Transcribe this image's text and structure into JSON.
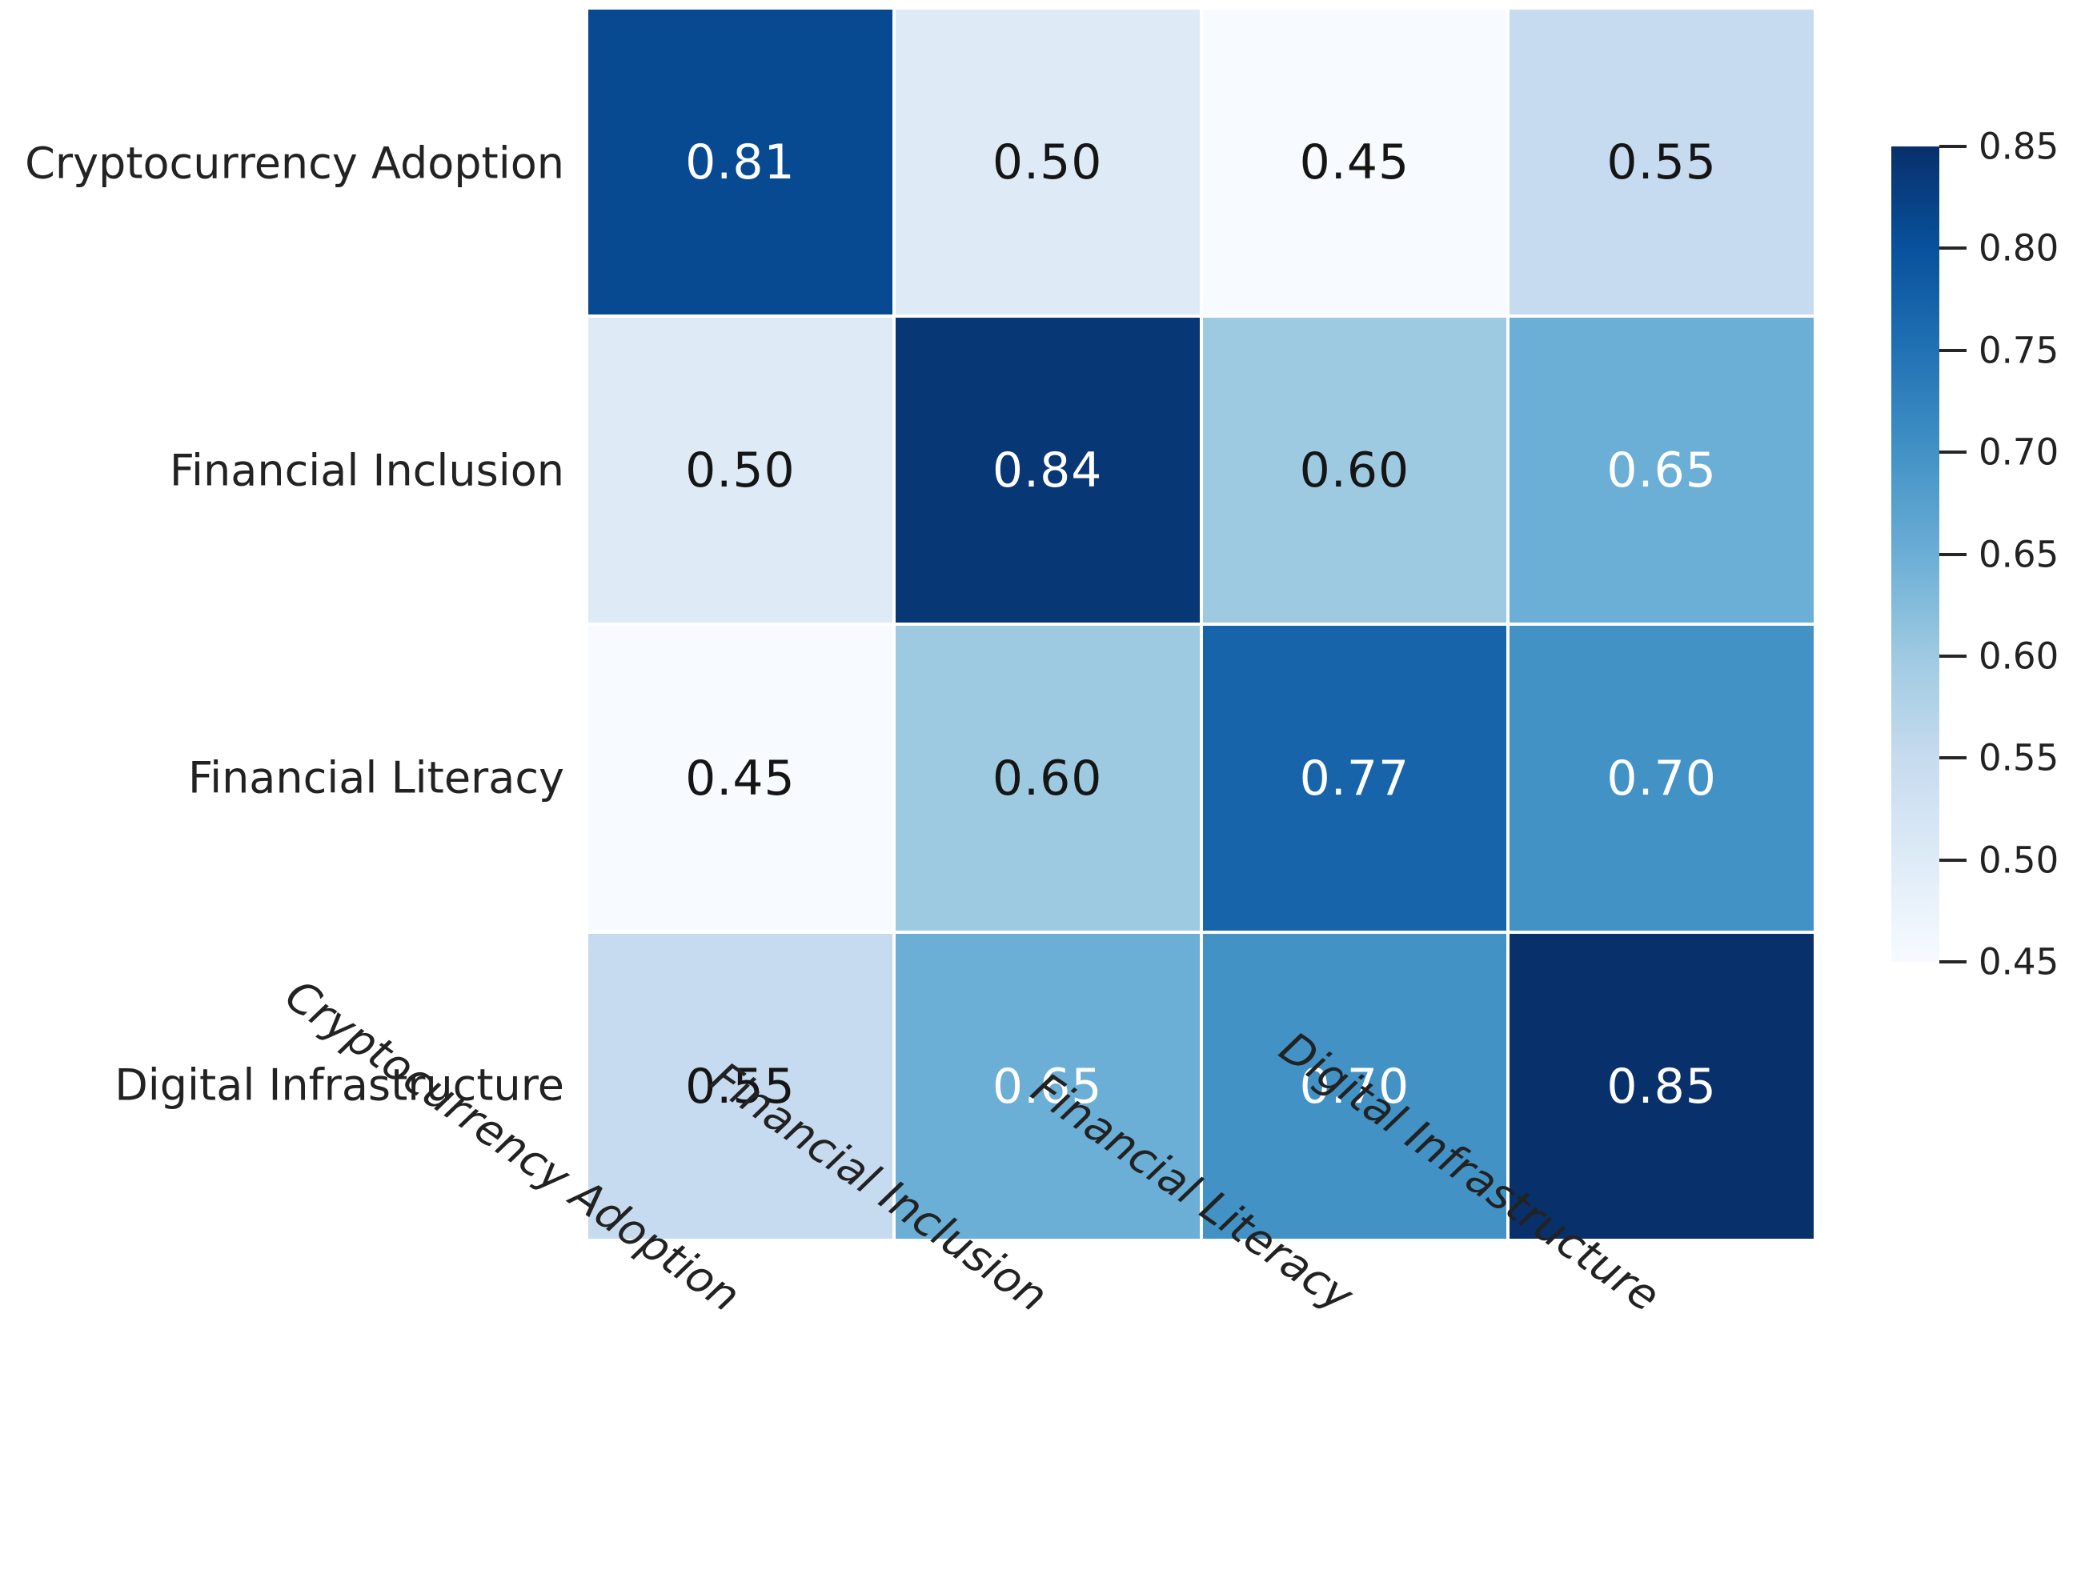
{
  "chart_data": {
    "type": "heatmap",
    "title": "",
    "categories": [
      "Cryptocurrency Adoption",
      "Financial Inclusion",
      "Financial Literacy",
      "Digital Infrastructure"
    ],
    "x_categories": [
      "Cryptocurrency Adoption",
      "Financial Inclusion",
      "Financial Literacy",
      "Digital Infrastructure"
    ],
    "matrix": [
      [
        0.81,
        0.5,
        0.45,
        0.55
      ],
      [
        0.5,
        0.84,
        0.6,
        0.65
      ],
      [
        0.45,
        0.6,
        0.77,
        0.7
      ],
      [
        0.55,
        0.65,
        0.7,
        0.85
      ]
    ],
    "cell_labels": [
      [
        "0.81",
        "0.50",
        "0.45",
        "0.55"
      ],
      [
        "0.50",
        "0.84",
        "0.60",
        "0.65"
      ],
      [
        "0.45",
        "0.60",
        "0.77",
        "0.70"
      ],
      [
        "0.55",
        "0.65",
        "0.70",
        "0.85"
      ]
    ],
    "cell_colors": [
      [
        "#084a92",
        "#deebf7",
        "#f7fbff",
        "#c6dbef"
      ],
      [
        "#deebf7",
        "#083775",
        "#9ecae1",
        "#6baed6"
      ],
      [
        "#f7fbff",
        "#9ecae1",
        "#1764ab",
        "#4292c6"
      ],
      [
        "#c6dbef",
        "#6baed6",
        "#4292c6",
        "#08306b"
      ]
    ],
    "cell_white_text": [
      [
        true,
        false,
        false,
        false
      ],
      [
        false,
        true,
        false,
        true
      ],
      [
        false,
        false,
        true,
        true
      ],
      [
        false,
        true,
        true,
        true
      ]
    ],
    "colormap": "Blues",
    "grid": false,
    "legend_position": "right",
    "colorbar": {
      "vmin": 0.45,
      "vmax": 0.85,
      "tick_labels": [
        "0.85",
        "0.80",
        "0.75",
        "0.70",
        "0.65",
        "0.60",
        "0.55",
        "0.50",
        "0.45"
      ],
      "tick_values": [
        0.85,
        0.8,
        0.75,
        0.7,
        0.65,
        0.6,
        0.55,
        0.5,
        0.45
      ],
      "gradient_stops_bottom_to_top": [
        "#f7fbff",
        "#deebf7",
        "#c6dbef",
        "#9ecae1",
        "#6baed6",
        "#4292c6",
        "#2171b5",
        "#08519c",
        "#08306b"
      ]
    }
  },
  "colors": {
    "background": "#ffffff",
    "axis_label_text": "#222222",
    "tick_mark": "#262626",
    "annotation_dark": "#151515",
    "annotation_light": "#ffffff"
  }
}
